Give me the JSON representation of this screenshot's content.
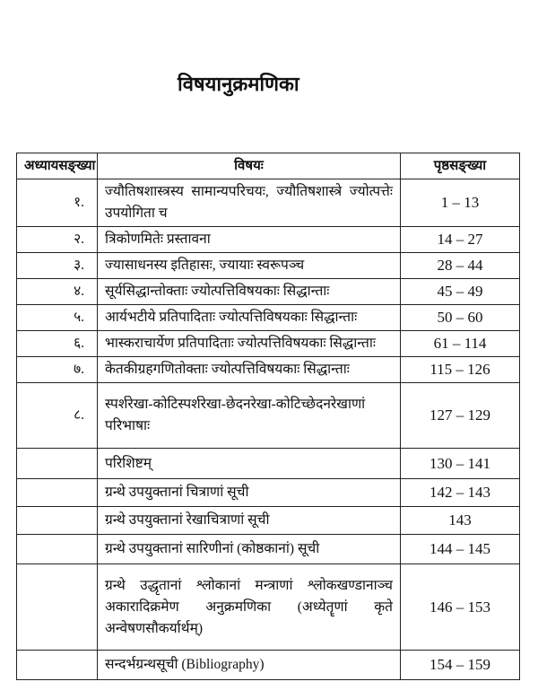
{
  "title": "विषयानुक्रमणिका",
  "table": {
    "headers": [
      "अध्यायसङ्ख्या",
      "विषयः",
      "पृष्ठसङ्ख्या"
    ],
    "rows": [
      {
        "chapter": "१.",
        "topic": "ज्यौतिषशास्त्रस्य सामान्यपरिचयः, ज्यौतिषशास्त्रे ज्योत्पत्तेः उपयोगिता च",
        "pages": "1 – 13"
      },
      {
        "chapter": "२.",
        "topic": "त्रिकोणमितेः प्रस्तावना",
        "pages": "14 – 27"
      },
      {
        "chapter": "३.",
        "topic": "ज्यासाधनस्य इतिहासः, ज्यायाः स्वरूपञ्च",
        "pages": "28 – 44"
      },
      {
        "chapter": "४.",
        "topic": "सूर्यसिद्धान्तोक्ताः ज्योत्पत्तिविषयकाः सिद्धान्ताः",
        "pages": "45 – 49"
      },
      {
        "chapter": "५.",
        "topic": "आर्यभटीये प्रतिपादिताः ज्योत्पत्तिविषयकाः सिद्धान्ताः",
        "pages": "50 – 60"
      },
      {
        "chapter": "६.",
        "topic": "भास्कराचार्येण प्रतिपादिताः ज्योत्पत्तिविषयकाः सिद्धान्ताः",
        "pages": "61 – 114"
      },
      {
        "chapter": "७.",
        "topic": "केतकीग्रहगणितोक्ताः ज्योत्पत्तिविषयकाः सिद्धान्ताः",
        "pages": "115 – 126"
      },
      {
        "chapter": "८.",
        "topic": "स्पर्शरेखा-कोटिस्पर्शरेखा-छेदनरेखा-कोटिच्छेदनरेखाणां परिभाषाः",
        "pages": "127 – 129"
      },
      {
        "chapter": "",
        "topic": "परिशिष्टम्",
        "pages": "130 – 141"
      },
      {
        "chapter": "",
        "topic": "ग्रन्थे उपयुक्तानां चित्राणां सूची",
        "pages": "142 – 143"
      },
      {
        "chapter": "",
        "topic": "ग्रन्थे उपयुक्तानां रेखाचित्राणां सूची",
        "pages": "143"
      },
      {
        "chapter": "",
        "topic": "ग्रन्थे उपयुक्तानां सारिणीनां (कोष्ठकानां) सूची",
        "pages": "144 – 145"
      },
      {
        "chapter": "",
        "topic": "ग्रन्थे उद्धृतानां श्लोकानां मन्त्राणां श्लोकखण्डानाञ्च अकारादिक्रमेण अनुक्रमणिका (अध्येतॄणां कृते अन्वेषणसौकर्यार्थम्)",
        "pages": "146 – 153"
      },
      {
        "chapter": "",
        "topic": "सन्दर्भग्रन्थसूची (Bibliography)",
        "pages": "154 – 159"
      }
    ]
  }
}
